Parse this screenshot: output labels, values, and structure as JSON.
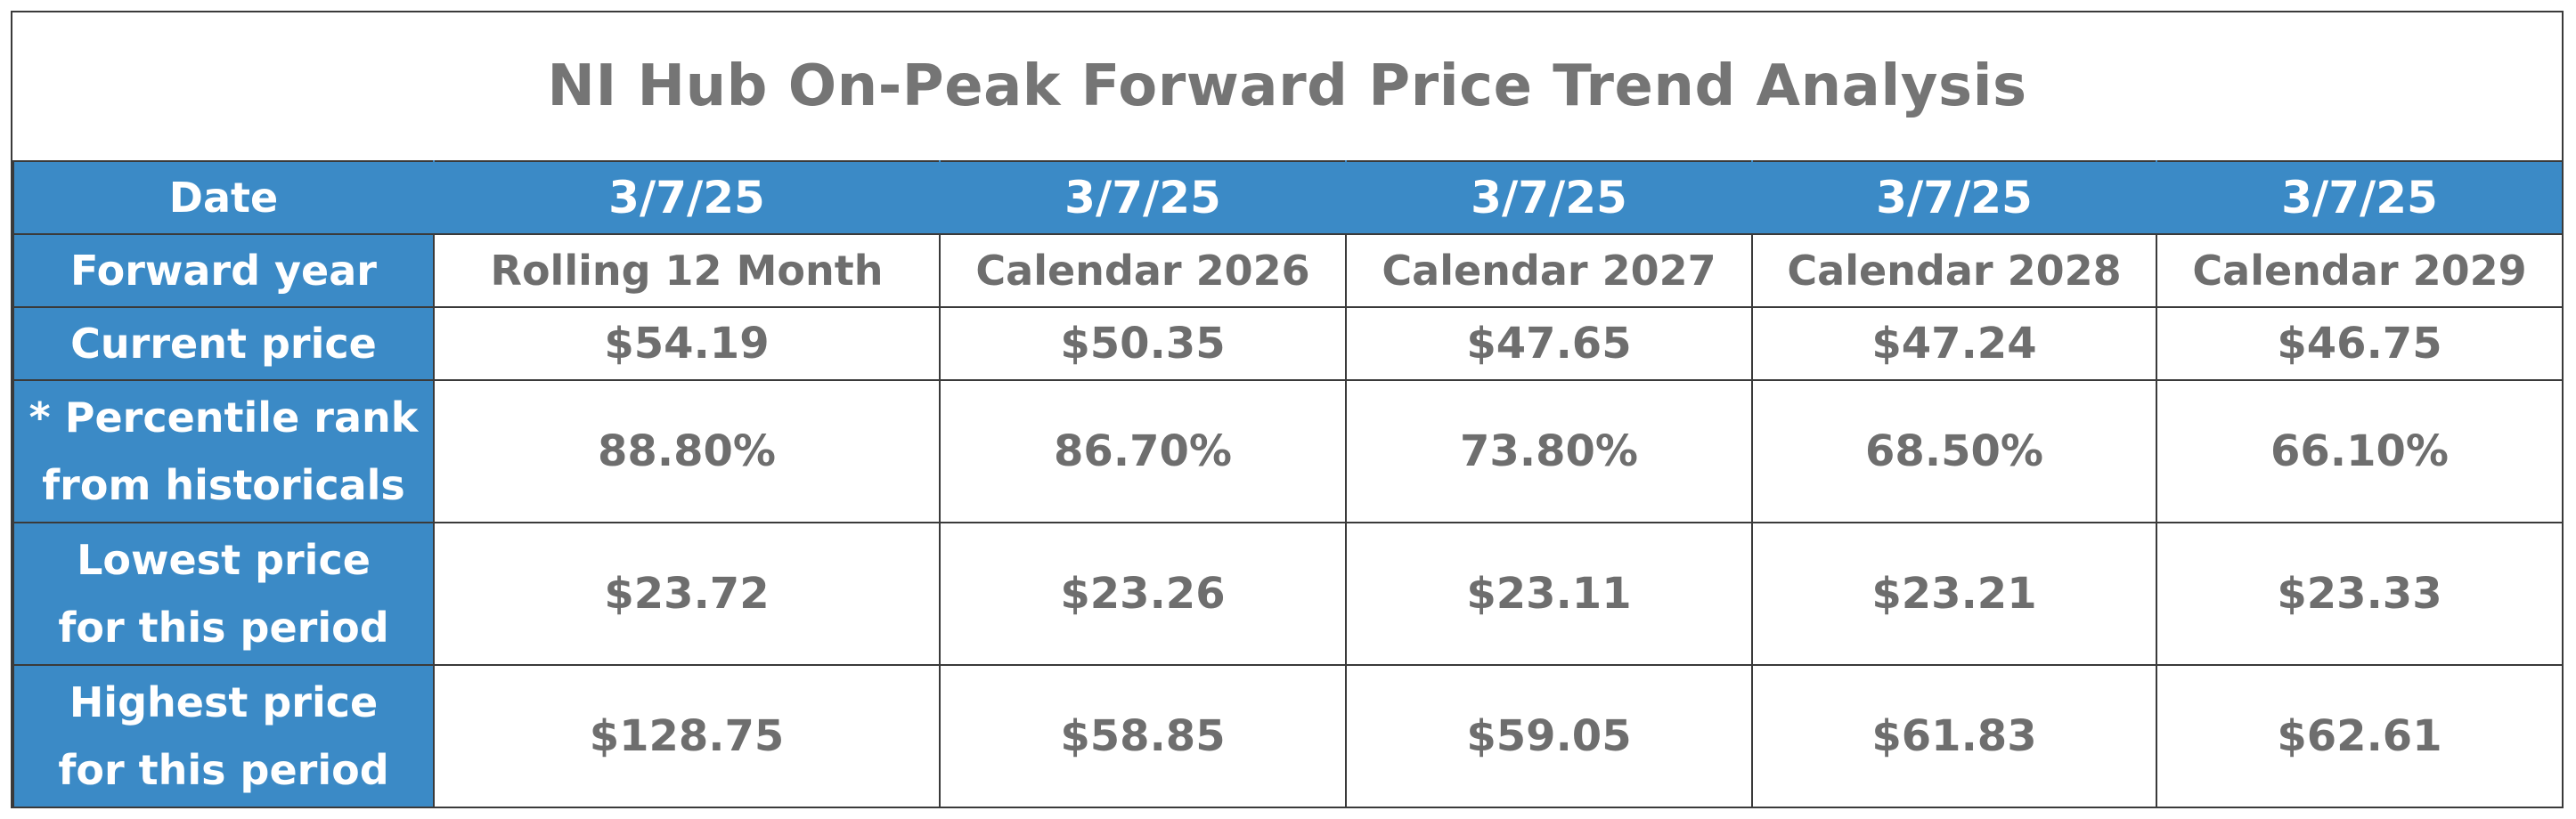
{
  "title": "NI Hub On-Peak Forward Price Trend Analysis",
  "colors": {
    "header_blue": "#3b8ac6",
    "text_gray": "#6e6e6e",
    "title_gray": "#757575"
  },
  "rows": {
    "date": {
      "label": "Date",
      "values": [
        "3/7/25",
        "3/7/25",
        "3/7/25",
        "3/7/25",
        "3/7/25"
      ]
    },
    "forward_year": {
      "label": "Forward year",
      "values": [
        "Rolling 12 Month",
        "Calendar 2026",
        "Calendar 2027",
        "Calendar 2028",
        "Calendar 2029"
      ]
    },
    "current_price": {
      "label": "Current price",
      "values": [
        "$54.19",
        "$50.35",
        "$47.65",
        "$47.24",
        "$46.75"
      ]
    },
    "percentile_rank": {
      "label_line1": "* Percentile rank",
      "label_line2": "from historicals",
      "values": [
        "88.80%",
        "86.70%",
        "73.80%",
        "68.50%",
        "66.10%"
      ]
    },
    "lowest_price": {
      "label_line1": "Lowest price",
      "label_line2": "for this period",
      "values": [
        "$23.72",
        "$23.26",
        "$23.11",
        "$23.21",
        "$23.33"
      ]
    },
    "highest_price": {
      "label_line1": "Highest price",
      "label_line2": "for this period",
      "values": [
        "$128.75",
        "$58.85",
        "$59.05",
        "$61.83",
        "$62.61"
      ]
    }
  }
}
